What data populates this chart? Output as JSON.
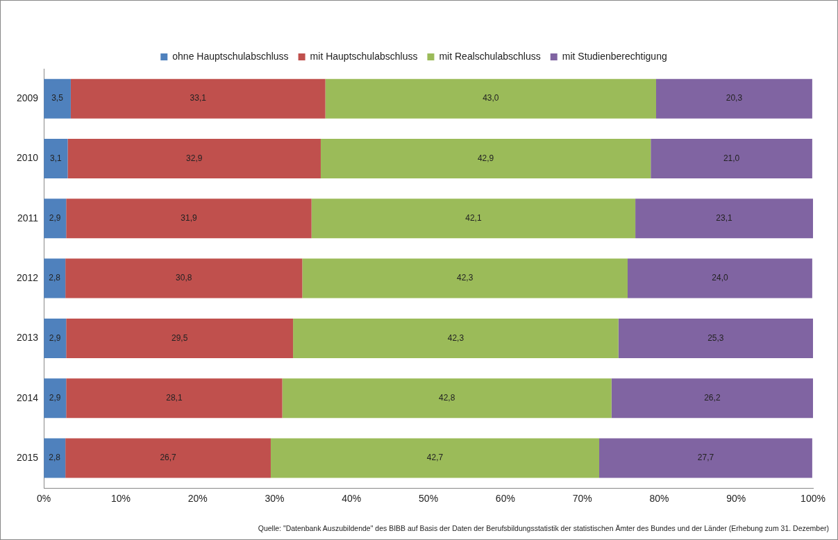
{
  "chart_data": {
    "type": "bar",
    "orientation": "horizontal",
    "stacked": true,
    "categories": [
      "2009",
      "2010",
      "2011",
      "2012",
      "2013",
      "2014",
      "2015"
    ],
    "series": [
      {
        "name": "ohne Hauptschulabschluss",
        "color": "#4f81bd",
        "values": [
          3.5,
          3.1,
          2.9,
          2.8,
          2.9,
          2.9,
          2.8
        ],
        "value_labels": [
          "3,5",
          "3,1",
          "2,9",
          "2,8",
          "2,9",
          "2,9",
          "2,8"
        ]
      },
      {
        "name": "mit Hauptschulabschluss",
        "color": "#c0504d",
        "values": [
          33.1,
          32.9,
          31.9,
          30.8,
          29.5,
          28.1,
          26.7
        ],
        "value_labels": [
          "33,1",
          "32,9",
          "31,9",
          "30,8",
          "29,5",
          "28,1",
          "26,7"
        ]
      },
      {
        "name": "mit Realschulabschluss",
        "color": "#9bbb59",
        "values": [
          43.0,
          42.9,
          42.1,
          42.3,
          42.3,
          42.8,
          42.7
        ],
        "value_labels": [
          "43,0",
          "42,9",
          "42,1",
          "42,3",
          "42,3",
          "42,8",
          "42,7"
        ]
      },
      {
        "name": "mit Studienberechtigung",
        "color": "#8064a2",
        "values": [
          20.3,
          21.0,
          23.1,
          24.0,
          25.3,
          26.2,
          27.7
        ],
        "value_labels": [
          "20,3",
          "21,0",
          "23,1",
          "24,0",
          "25,3",
          "26,2",
          "27,7"
        ]
      }
    ],
    "xlim": [
      0,
      100
    ],
    "xticks": [
      {
        "value": 0,
        "label": "0%"
      },
      {
        "value": 10,
        "label": "10%"
      },
      {
        "value": 20,
        "label": "20%"
      },
      {
        "value": 30,
        "label": "30%"
      },
      {
        "value": 40,
        "label": "40%"
      },
      {
        "value": 50,
        "label": "50%"
      },
      {
        "value": 60,
        "label": "60%"
      },
      {
        "value": 70,
        "label": "70%"
      },
      {
        "value": 80,
        "label": "80%"
      },
      {
        "value": 90,
        "label": "90%"
      },
      {
        "value": 100,
        "label": "100%"
      }
    ],
    "grid": false,
    "legend": "top",
    "annotations": [
      "Quelle: \"Datenbank Auszubildende\" des BIBB auf Basis der Daten der Berufsbildungsstatistik der statistischen Ämter des Bundes und der Länder (Erhebung zum 31. Dezember)"
    ]
  }
}
